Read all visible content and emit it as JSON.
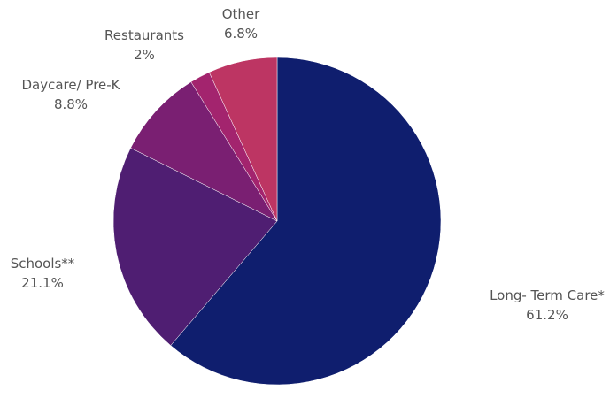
{
  "chart_data": {
    "type": "pie",
    "title": "",
    "legend": "none",
    "slices": [
      {
        "label": "Long- Term Care*",
        "value": 61.2,
        "display": "61.2%",
        "color": "#0f1e6e"
      },
      {
        "label": "Schools**",
        "value": 21.1,
        "display": "21.1%",
        "color": "#4f1e72"
      },
      {
        "label": "Daycare/ Pre-K",
        "value": 8.8,
        "display": "8.8%",
        "color": "#7a1f72"
      },
      {
        "label": "Restaurants",
        "value": 2,
        "display": "2%",
        "color": "#a3246e"
      },
      {
        "label": "Other",
        "value": 6.8,
        "display": "6.8%",
        "color": "#bd3563"
      }
    ]
  }
}
